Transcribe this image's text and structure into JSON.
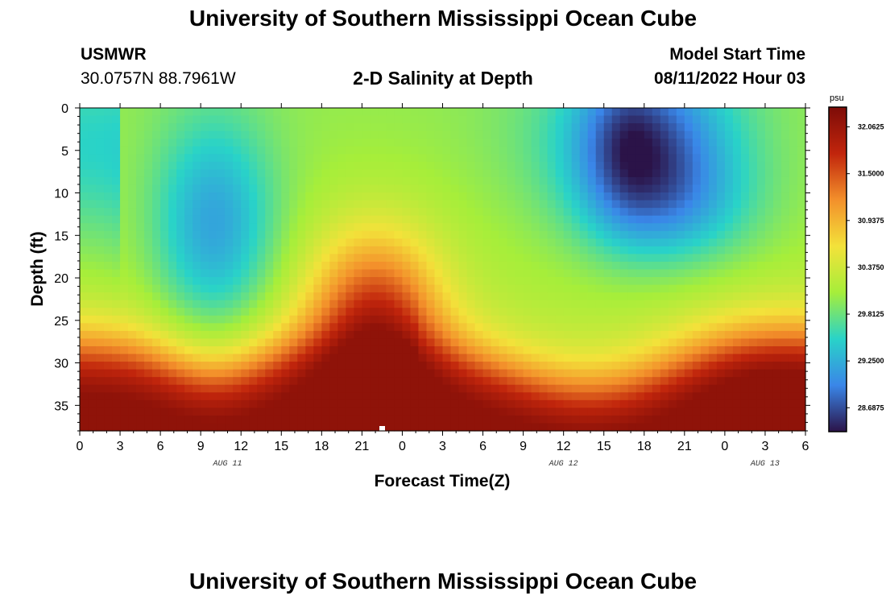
{
  "header": {
    "title": "University of Southern Mississippi Ocean Cube",
    "station": "USMWR",
    "coords": "30.0757N  88.7961W",
    "subtitle": "2-D Salinity at Depth",
    "model_label": "Model Start Time",
    "model_time": "08/11/2022 Hour 03"
  },
  "footer": {
    "title": "University of Southern Mississippi Ocean Cube"
  },
  "chart_data": {
    "type": "heatmap",
    "title": "2-D Salinity at Depth",
    "xlabel": "Forecast Time(Z)",
    "ylabel": "Depth (ft)",
    "x_tick_labels": [
      "0",
      "3",
      "6",
      "9",
      "12",
      "15",
      "18",
      "21",
      "0",
      "3",
      "6",
      "9",
      "12",
      "15",
      "18",
      "21",
      "0",
      "3",
      "6"
    ],
    "x_hours_range": [
      0,
      54
    ],
    "date_labels": [
      {
        "label": "AUG 11",
        "hour": 11
      },
      {
        "label": "AUG 12",
        "hour": 36
      },
      {
        "label": "AUG 13",
        "hour": 51
      }
    ],
    "y_tick_labels": [
      "0",
      "5",
      "10",
      "15",
      "20",
      "25",
      "30",
      "35"
    ],
    "ylim": [
      0,
      38
    ],
    "colorbar": {
      "unit": "psu",
      "range": [
        28.4,
        32.3
      ],
      "tick_labels": [
        "32.0625",
        "31.5000",
        "30.9375",
        "30.3750",
        "29.8125",
        "29.2500",
        "28.6875"
      ],
      "tick_values": [
        32.0625,
        31.5,
        30.9375,
        30.375,
        29.8125,
        29.25,
        28.6875
      ]
    },
    "salinity_features_psu": {
      "surface_value": 30.0,
      "near_bottom_value": 32.1,
      "low_center_1": {
        "hour": 10,
        "depth_ft": 14,
        "value": 29.25
      },
      "low_center_2": {
        "hour": 40,
        "depth_ft": 4,
        "value": 28.55
      },
      "high_intrusion_hour": 22
    },
    "colors": {
      "low": "#2b1348",
      "blue": "#3a86e8",
      "cyan": "#29d3c8",
      "green": "#a6ee3a",
      "yellow": "#f3e23a",
      "orange": "#f3902b",
      "red": "#c1250c",
      "high": "#7d0c08"
    }
  }
}
